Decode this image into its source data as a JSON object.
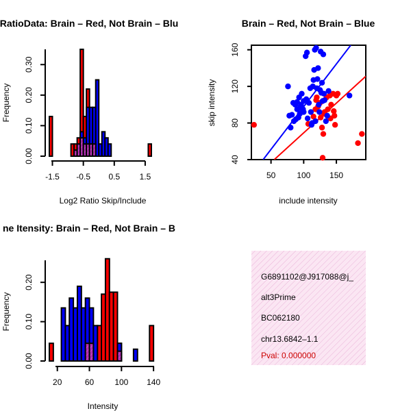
{
  "colors": {
    "red": "#ff0000",
    "blue": "#0000ff",
    "purple": "#b22ab2",
    "panel_bg": "#fbe6f3"
  },
  "chart_data": [
    {
      "type": "bar",
      "title": "RatioData: Brain – Red, Not Brain – Blu",
      "xlabel": "Log2 Ratio Skip/Include",
      "ylabel": "Frequency",
      "xlim": [
        -1.6,
        1.9
      ],
      "ylim": [
        0,
        0.35
      ],
      "xticks": [
        -1.5,
        -0.5,
        0.5,
        1.5
      ],
      "xtick_labels": [
        "-1.5",
        "-0.5",
        "0.5",
        "1.5"
      ],
      "yticks": [
        0.0,
        0.1,
        0.2,
        0.3
      ],
      "ytick_labels": [
        "0.00",
        "0.10",
        "0.20",
        "0.30"
      ],
      "bin_width": 0.1,
      "series": [
        {
          "name": "Brain",
          "color": "red",
          "bins": [
            [
              -1.6,
              0.13
            ],
            [
              -0.9,
              0.04
            ],
            [
              -0.8,
              0.04
            ],
            [
              -0.7,
              0.06
            ],
            [
              -0.6,
              0.35
            ],
            [
              -0.5,
              0.13
            ],
            [
              -0.4,
              0.22
            ],
            [
              1.6,
              0.04
            ]
          ]
        },
        {
          "name": "Not Brain",
          "color": "blue",
          "bins": [
            [
              -0.6,
              0.08
            ],
            [
              -0.5,
              0.06
            ],
            [
              -0.4,
              0.16
            ],
            [
              -0.3,
              0.16
            ],
            [
              -0.2,
              0.16
            ],
            [
              -0.1,
              0.25
            ],
            [
              0.0,
              0.04
            ],
            [
              0.1,
              0.08
            ],
            [
              0.2,
              0.06
            ],
            [
              0.3,
              0.04
            ]
          ]
        },
        {
          "name": "Overlap",
          "color": "purple",
          "bins": [
            [
              -0.8,
              0.02
            ],
            [
              -0.7,
              0.04
            ],
            [
              -0.6,
              0.06
            ],
            [
              -0.5,
              0.04
            ],
            [
              -0.4,
              0.04
            ],
            [
              -0.3,
              0.04
            ],
            [
              -0.2,
              0.04
            ]
          ]
        }
      ]
    },
    {
      "type": "scatter",
      "title": "Brain – Red, Not Brain – Blue",
      "xlabel": "include intensity",
      "ylabel": "skip intensity",
      "xlim": [
        20,
        195
      ],
      "ylim": [
        40,
        165
      ],
      "xticks": [
        50,
        100,
        150
      ],
      "xtick_labels": [
        "50",
        "100",
        "150"
      ],
      "yticks": [
        40,
        80,
        120,
        160
      ],
      "ytick_labels": [
        "40",
        "80",
        "120",
        "160"
      ],
      "series": [
        {
          "name": "Brain",
          "color": "red",
          "points": [
            [
              24,
              78
            ],
            [
              107,
              79
            ],
            [
              115,
              87
            ],
            [
              118,
              95
            ],
            [
              119,
              105
            ],
            [
              120,
              108
            ],
            [
              122,
              98
            ],
            [
              125,
              102
            ],
            [
              126,
              86
            ],
            [
              128,
              75
            ],
            [
              129,
              42
            ],
            [
              130,
              68
            ],
            [
              131,
              90
            ],
            [
              132,
              92
            ],
            [
              135,
              108
            ],
            [
              137,
              95
            ],
            [
              140,
              110
            ],
            [
              141,
              85
            ],
            [
              142,
              100
            ],
            [
              145,
              112
            ],
            [
              146,
              93
            ],
            [
              147,
              88
            ],
            [
              148,
              78
            ],
            [
              150,
              110
            ],
            [
              152,
              112
            ],
            [
              183,
              58
            ],
            [
              189,
              68
            ]
          ],
          "fit_line": [
            [
              55,
              40
            ],
            [
              195,
              131
            ]
          ]
        },
        {
          "name": "Not Brain",
          "color": "blue",
          "points": [
            [
              76,
              120
            ],
            [
              78,
              88
            ],
            [
              80,
              75
            ],
            [
              82,
              89
            ],
            [
              84,
              102
            ],
            [
              85,
              82
            ],
            [
              87,
              100
            ],
            [
              88,
              84
            ],
            [
              90,
              95
            ],
            [
              90,
              103
            ],
            [
              92,
              86
            ],
            [
              93,
              108
            ],
            [
              94,
              90
            ],
            [
              95,
              98
            ],
            [
              96,
              100
            ],
            [
              97,
              112
            ],
            [
              98,
              94
            ],
            [
              99,
              95
            ],
            [
              100,
              92
            ],
            [
              100,
              104
            ],
            [
              103,
              153
            ],
            [
              104,
              106
            ],
            [
              105,
              157
            ],
            [
              106,
              85
            ],
            [
              108,
              102
            ],
            [
              110,
              118
            ],
            [
              111,
              92
            ],
            [
              112,
              78
            ],
            [
              113,
              80
            ],
            [
              114,
              120
            ],
            [
              115,
              127
            ],
            [
              116,
              138
            ],
            [
              117,
              160
            ],
            [
              118,
              82
            ],
            [
              119,
              162
            ],
            [
              120,
              118
            ],
            [
              121,
              128
            ],
            [
              122,
              140
            ],
            [
              123,
              100
            ],
            [
              124,
              92
            ],
            [
              125,
              116
            ],
            [
              126,
              158
            ],
            [
              127,
              113
            ],
            [
              128,
              124
            ],
            [
              129,
              104
            ],
            [
              130,
              155
            ],
            [
              131,
              112
            ],
            [
              132,
              105
            ],
            [
              134,
              82
            ],
            [
              136,
              88
            ],
            [
              138,
              115
            ],
            [
              170,
              110
            ]
          ],
          "fit_line": [
            [
              38,
              40
            ],
            [
              172,
              165
            ]
          ]
        }
      ]
    },
    {
      "type": "bar",
      "title": "ne Itensity: Brain – Red, Not Brain – B",
      "xlabel": "Intensity",
      "ylabel": "Frequency",
      "xlim": [
        10,
        145
      ],
      "ylim": [
        0,
        0.27
      ],
      "xticks": [
        20,
        60,
        100,
        140
      ],
      "xtick_labels": [
        "20",
        "60",
        "100",
        "140"
      ],
      "yticks": [
        0.0,
        0.1,
        0.2
      ],
      "ytick_labels": [
        "0.00",
        "0.10",
        "0.20"
      ],
      "bin_width": 5,
      "series": [
        {
          "name": "Brain",
          "color": "red",
          "bins": [
            [
              10,
              0.045
            ],
            [
              55,
              0.045
            ],
            [
              70,
              0.09
            ],
            [
              75,
              0.17
            ],
            [
              80,
              0.26
            ],
            [
              85,
              0.175
            ],
            [
              90,
              0.175
            ],
            [
              95,
              0.045
            ],
            [
              135,
              0.09
            ]
          ]
        },
        {
          "name": "Not Brain",
          "color": "blue",
          "bins": [
            [
              25,
              0.135
            ],
            [
              30,
              0.09
            ],
            [
              35,
              0.16
            ],
            [
              40,
              0.135
            ],
            [
              45,
              0.19
            ],
            [
              50,
              0.135
            ],
            [
              55,
              0.16
            ],
            [
              60,
              0.135
            ],
            [
              65,
              0.09
            ],
            [
              95,
              0.045
            ],
            [
              115,
              0.03
            ]
          ]
        },
        {
          "name": "Overlap",
          "color": "purple",
          "bins": [
            [
              55,
              0.045
            ],
            [
              60,
              0.045
            ],
            [
              95,
              0.025
            ]
          ]
        }
      ]
    }
  ],
  "info_panel": {
    "exon_id": "G6891102@J917088@j_",
    "event_type": "alt3Prime",
    "accession": "BC062180",
    "location": "chr13.6842–1.1",
    "pval": "Pval: 0.000000",
    "pval_color": "#cc0000"
  }
}
